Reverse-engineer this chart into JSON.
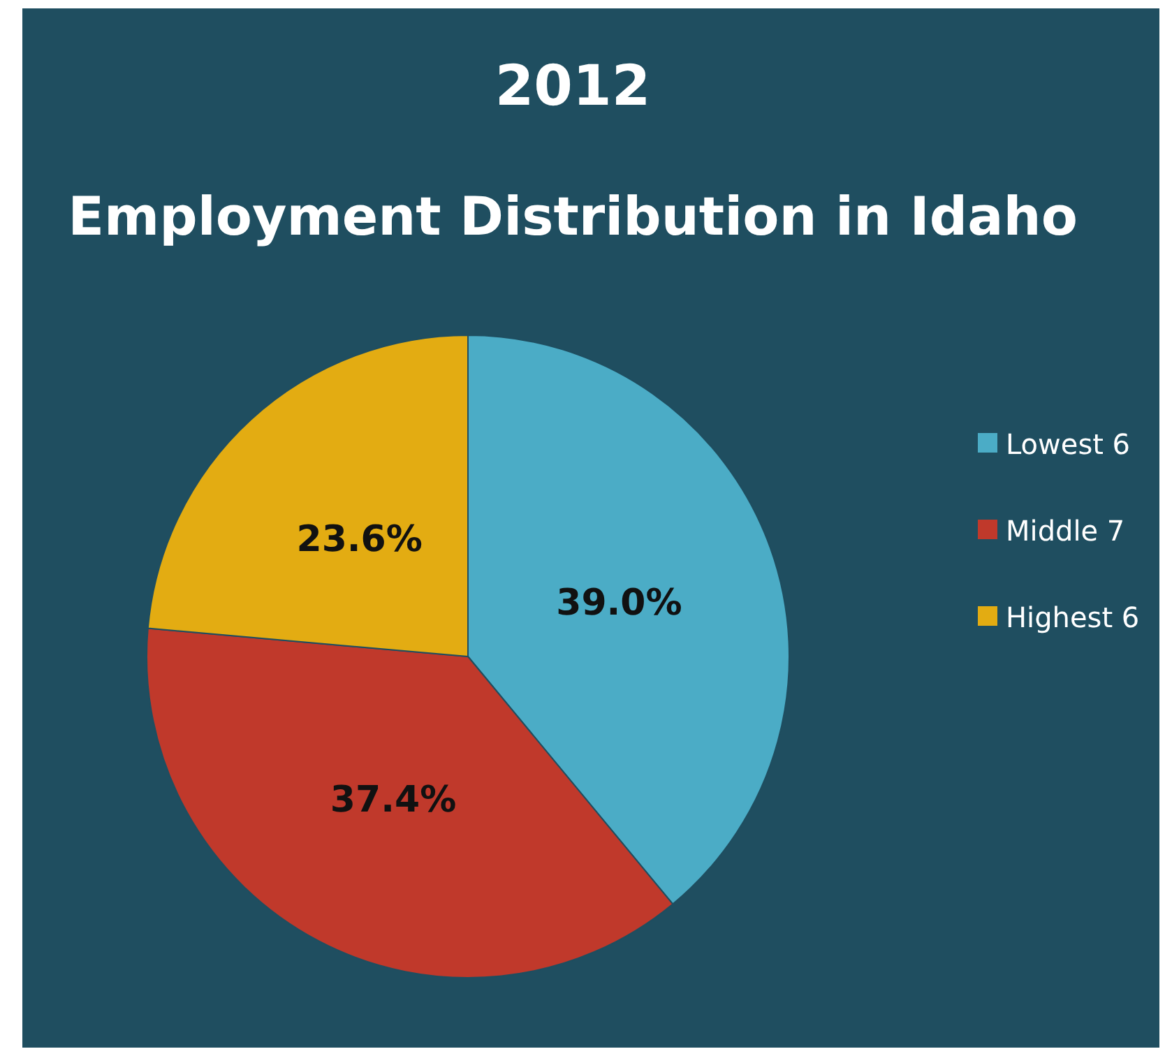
{
  "chart_data": {
    "type": "pie",
    "title": "2012",
    "subtitle": "Employment Distribution in Idaho",
    "categories": [
      "Lowest 6",
      "Middle 7",
      "Highest 6"
    ],
    "values": [
      39.0,
      37.4,
      23.6
    ],
    "colors": [
      "#4bacc6",
      "#c0392b",
      "#e3ac12"
    ],
    "value_labels": [
      "39.0%",
      "37.4%",
      "23.6%"
    ],
    "legend": "right"
  }
}
